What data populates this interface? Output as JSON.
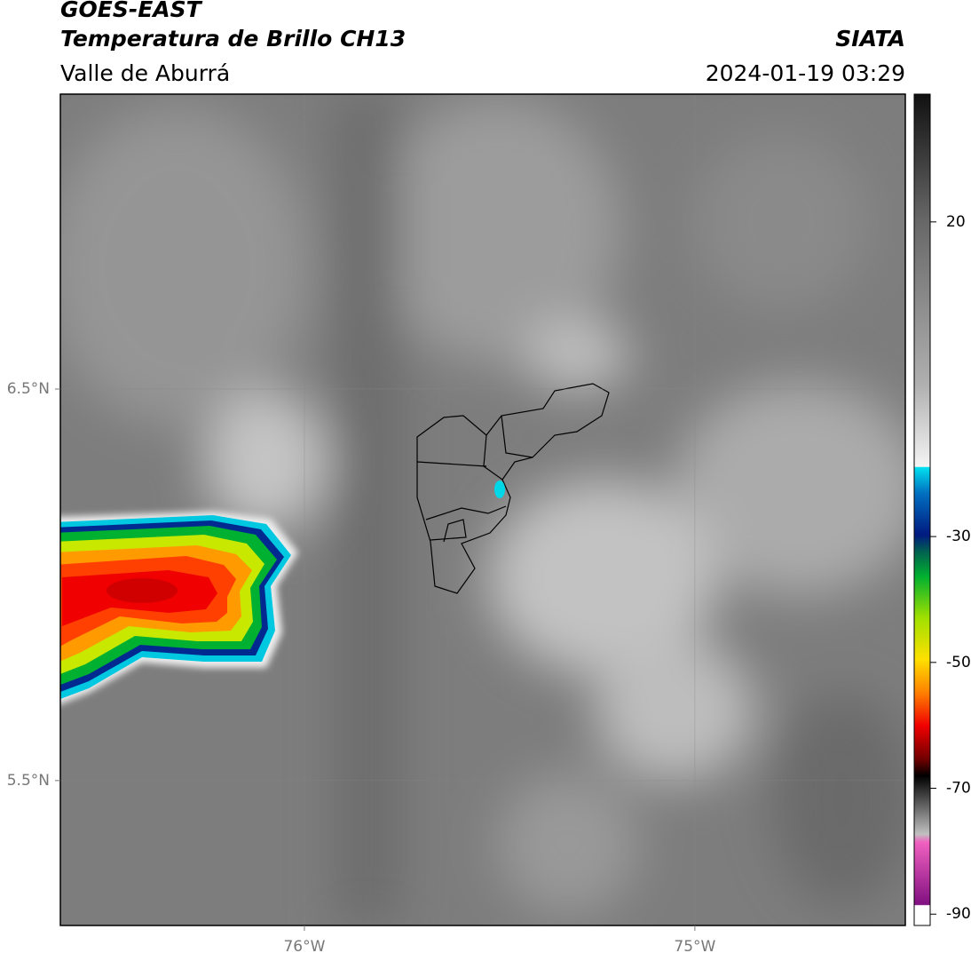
{
  "header": {
    "title": "GOES-EAST",
    "subtitle": "Temperatura de Brillo CH13",
    "region": "Valle de Aburrá",
    "source": "SIATA",
    "timestamp": "2024-01-19 03:29"
  },
  "map": {
    "xlim": [
      -76.625,
      -74.461
    ],
    "ylim": [
      5.13,
      7.253
    ],
    "xticks": [
      {
        "value": -76,
        "label": "76°W"
      },
      {
        "value": -75,
        "label": "75°W"
      }
    ],
    "yticks": [
      {
        "value": 6.5,
        "label": "6.5°N"
      },
      {
        "value": 5.5,
        "label": "5.5°N"
      }
    ],
    "grid": true
  },
  "colorbar": {
    "lim": [
      -91.8,
      40.3
    ],
    "ticks": [
      20,
      -30,
      -50,
      -70,
      -90
    ]
  }
}
